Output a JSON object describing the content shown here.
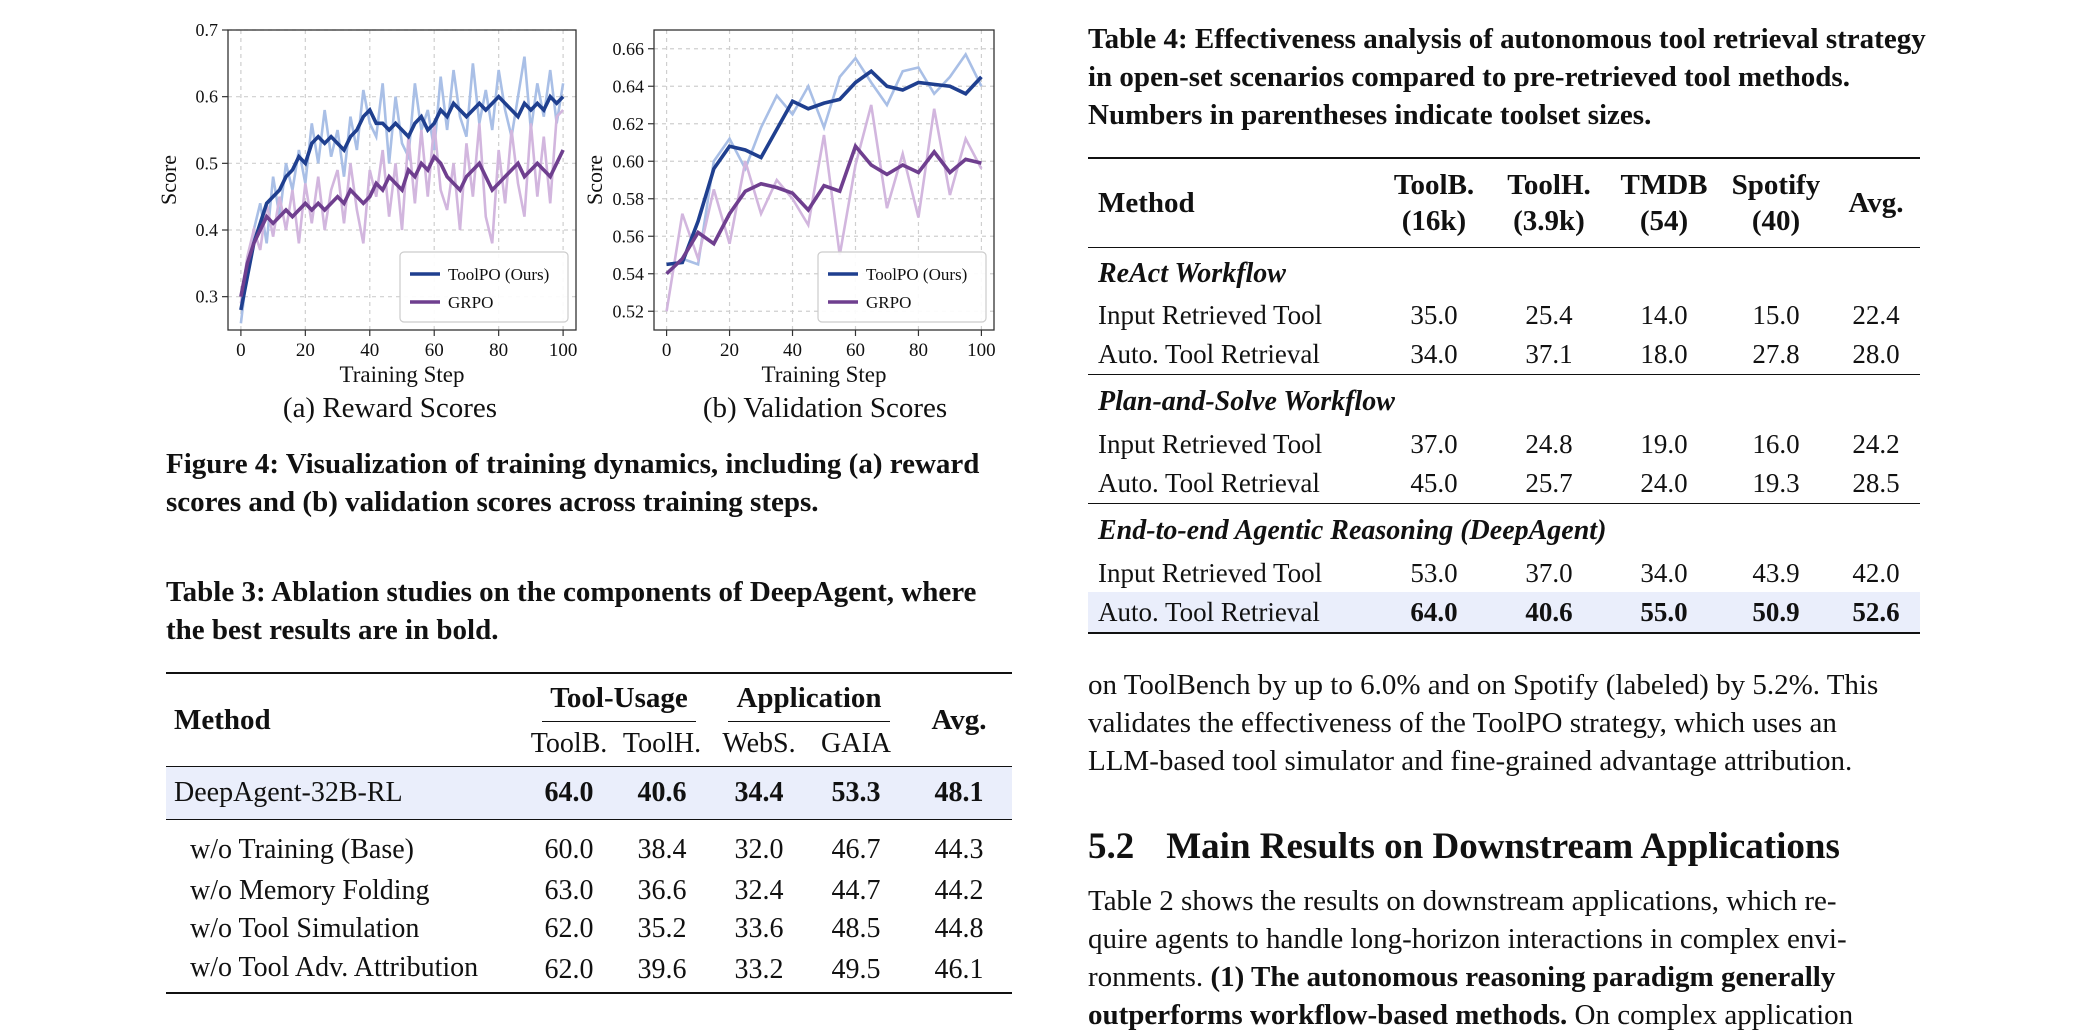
{
  "figure": {
    "subcaption_a": "(a) Reward Scores",
    "subcaption_b": "(b) Validation Scores",
    "caption": "Figure 4: Visualization of training dynamics, including (a) reward scores and (b) validation scores across training steps."
  },
  "chart_data": [
    {
      "type": "line",
      "title": "",
      "xlabel": "Training Step",
      "ylabel": "Score",
      "xlim": [
        -4,
        104
      ],
      "ylim": [
        0.25,
        0.7
      ],
      "xticks": [
        0,
        20,
        40,
        60,
        80,
        100
      ],
      "yticks": [
        0.3,
        0.4,
        0.5,
        0.6,
        0.7
      ],
      "ytick_labels": [
        "0.3",
        "0.4",
        "0.5",
        "0.6",
        "0.7"
      ],
      "grid": true,
      "legend_position": "lower-right",
      "series": [
        {
          "name": "ToolPO (Ours)",
          "color": "#1f3f8f",
          "raw_color": "#a9bfe6",
          "x": [
            0,
            2,
            4,
            6,
            8,
            10,
            12,
            14,
            16,
            18,
            20,
            22,
            24,
            26,
            28,
            30,
            32,
            34,
            36,
            38,
            40,
            42,
            44,
            46,
            48,
            50,
            52,
            54,
            56,
            58,
            60,
            62,
            64,
            66,
            68,
            70,
            72,
            74,
            76,
            78,
            80,
            82,
            84,
            86,
            88,
            90,
            92,
            94,
            96,
            98,
            100
          ],
          "values": [
            0.28,
            0.33,
            0.38,
            0.41,
            0.44,
            0.45,
            0.46,
            0.48,
            0.49,
            0.51,
            0.5,
            0.53,
            0.54,
            0.53,
            0.54,
            0.53,
            0.52,
            0.54,
            0.55,
            0.57,
            0.58,
            0.56,
            0.56,
            0.55,
            0.56,
            0.55,
            0.54,
            0.56,
            0.57,
            0.55,
            0.56,
            0.58,
            0.57,
            0.59,
            0.58,
            0.57,
            0.58,
            0.59,
            0.58,
            0.59,
            0.6,
            0.59,
            0.58,
            0.57,
            0.59,
            0.58,
            0.59,
            0.58,
            0.6,
            0.59,
            0.6
          ],
          "raw_values": [
            0.26,
            0.34,
            0.4,
            0.44,
            0.38,
            0.48,
            0.42,
            0.5,
            0.46,
            0.52,
            0.47,
            0.56,
            0.5,
            0.58,
            0.51,
            0.55,
            0.48,
            0.57,
            0.52,
            0.61,
            0.56,
            0.54,
            0.62,
            0.5,
            0.6,
            0.53,
            0.51,
            0.62,
            0.55,
            0.58,
            0.52,
            0.63,
            0.55,
            0.64,
            0.57,
            0.54,
            0.65,
            0.56,
            0.61,
            0.55,
            0.64,
            0.58,
            0.54,
            0.6,
            0.66,
            0.55,
            0.62,
            0.57,
            0.64,
            0.56,
            0.62
          ]
        },
        {
          "name": "GRPO",
          "color": "#6f3f8f",
          "raw_color": "#d2b6de",
          "x": [
            0,
            2,
            4,
            6,
            8,
            10,
            12,
            14,
            16,
            18,
            20,
            22,
            24,
            26,
            28,
            30,
            32,
            34,
            36,
            38,
            40,
            42,
            44,
            46,
            48,
            50,
            52,
            54,
            56,
            58,
            60,
            62,
            64,
            66,
            68,
            70,
            72,
            74,
            76,
            78,
            80,
            82,
            84,
            86,
            88,
            90,
            92,
            94,
            96,
            98,
            100
          ],
          "values": [
            0.3,
            0.35,
            0.38,
            0.4,
            0.42,
            0.41,
            0.42,
            0.43,
            0.42,
            0.43,
            0.44,
            0.43,
            0.44,
            0.43,
            0.44,
            0.45,
            0.44,
            0.46,
            0.45,
            0.44,
            0.45,
            0.47,
            0.46,
            0.48,
            0.47,
            0.46,
            0.49,
            0.48,
            0.5,
            0.49,
            0.51,
            0.5,
            0.48,
            0.47,
            0.46,
            0.48,
            0.49,
            0.5,
            0.48,
            0.46,
            0.47,
            0.48,
            0.49,
            0.5,
            0.48,
            0.49,
            0.5,
            0.49,
            0.48,
            0.5,
            0.52
          ],
          "raw_values": [
            0.29,
            0.36,
            0.4,
            0.37,
            0.44,
            0.39,
            0.45,
            0.4,
            0.46,
            0.38,
            0.47,
            0.41,
            0.48,
            0.4,
            0.46,
            0.49,
            0.41,
            0.5,
            0.43,
            0.38,
            0.49,
            0.45,
            0.52,
            0.42,
            0.5,
            0.4,
            0.54,
            0.44,
            0.55,
            0.45,
            0.56,
            0.46,
            0.43,
            0.5,
            0.4,
            0.53,
            0.45,
            0.56,
            0.42,
            0.38,
            0.52,
            0.44,
            0.55,
            0.47,
            0.42,
            0.56,
            0.45,
            0.54,
            0.44,
            0.57,
            0.58
          ]
        }
      ]
    },
    {
      "type": "line",
      "title": "",
      "xlabel": "Training Step",
      "ylabel": "Score",
      "xlim": [
        -4,
        104
      ],
      "ylim": [
        0.51,
        0.67
      ],
      "xticks": [
        0,
        20,
        40,
        60,
        80,
        100
      ],
      "yticks": [
        0.52,
        0.54,
        0.56,
        0.58,
        0.6,
        0.62,
        0.64,
        0.66
      ],
      "ytick_labels": [
        "0.52",
        "0.54",
        "0.56",
        "0.58",
        "0.60",
        "0.62",
        "0.64",
        "0.66"
      ],
      "grid": true,
      "legend_position": "lower-right",
      "series": [
        {
          "name": "ToolPO (Ours)",
          "color": "#1f3f8f",
          "raw_color": "#a9bfe6",
          "x": [
            0,
            5,
            10,
            15,
            20,
            25,
            30,
            35,
            40,
            45,
            50,
            55,
            60,
            65,
            70,
            75,
            80,
            85,
            90,
            95,
            100
          ],
          "values": [
            0.545,
            0.546,
            0.568,
            0.596,
            0.608,
            0.606,
            0.602,
            0.617,
            0.632,
            0.628,
            0.631,
            0.633,
            0.642,
            0.648,
            0.64,
            0.638,
            0.642,
            0.641,
            0.64,
            0.636,
            0.645
          ],
          "raw_values": [
            0.54,
            0.548,
            0.545,
            0.6,
            0.612,
            0.596,
            0.618,
            0.635,
            0.625,
            0.64,
            0.618,
            0.645,
            0.655,
            0.642,
            0.63,
            0.648,
            0.65,
            0.636,
            0.645,
            0.657,
            0.64
          ]
        },
        {
          "name": "GRPO",
          "color": "#6f3f8f",
          "raw_color": "#d2b6de",
          "x": [
            0,
            5,
            10,
            15,
            20,
            25,
            30,
            35,
            40,
            45,
            50,
            55,
            60,
            65,
            70,
            75,
            80,
            85,
            90,
            95,
            100
          ],
          "values": [
            0.54,
            0.548,
            0.562,
            0.556,
            0.572,
            0.584,
            0.588,
            0.586,
            0.583,
            0.574,
            0.587,
            0.584,
            0.608,
            0.598,
            0.593,
            0.598,
            0.594,
            0.605,
            0.594,
            0.601,
            0.599
          ],
          "raw_values": [
            0.52,
            0.572,
            0.548,
            0.585,
            0.556,
            0.6,
            0.572,
            0.59,
            0.58,
            0.566,
            0.614,
            0.55,
            0.598,
            0.63,
            0.575,
            0.604,
            0.57,
            0.628,
            0.582,
            0.612,
            0.596
          ]
        }
      ]
    }
  ],
  "table3": {
    "caption": "Table 3: Ablation studies on the components of DeepAgent, where the best results are in bold.",
    "header": {
      "method": "Method",
      "group1": "Tool-Usage",
      "group2": "Application",
      "avg": "Avg.",
      "cols": [
        "ToolB.",
        "ToolH.",
        "WebS.",
        "GAIA"
      ]
    },
    "main_row": {
      "name": "DeepAgent-32B-RL",
      "values": [
        "64.0",
        "40.6",
        "34.4",
        "53.3",
        "48.1"
      ]
    },
    "rows": [
      {
        "name": "w/o Training (Base)",
        "values": [
          "60.0",
          "38.4",
          "32.0",
          "46.7",
          "44.3"
        ]
      },
      {
        "name": "w/o Memory Folding",
        "values": [
          "63.0",
          "36.6",
          "32.4",
          "44.7",
          "44.2"
        ]
      },
      {
        "name": "w/o Tool Simulation",
        "values": [
          "62.0",
          "35.2",
          "33.6",
          "48.5",
          "44.8"
        ]
      },
      {
        "name": "w/o Tool Adv. Attribution",
        "values": [
          "62.0",
          "39.6",
          "33.2",
          "49.5",
          "46.1"
        ]
      }
    ]
  },
  "table4": {
    "caption": "Table 4: Effectiveness analysis of autonomous tool retrieval strategy in open-set scenarios compared to pre-retrieved tool methods. Numbers in parentheses indicate toolset sizes.",
    "header": {
      "method": "Method",
      "cols": [
        [
          "ToolB.",
          "(16k)"
        ],
        [
          "ToolH.",
          "(3.9k)"
        ],
        [
          "TMDB",
          "(54)"
        ],
        [
          "Spotify",
          "(40)"
        ]
      ],
      "avg": "Avg."
    },
    "sections": [
      {
        "title": "ReAct Workflow",
        "rows": [
          {
            "name": "Input Retrieved Tool",
            "values": [
              "35.0",
              "25.4",
              "14.0",
              "15.0",
              "22.4"
            ]
          },
          {
            "name": "Auto. Tool Retrieval",
            "values": [
              "34.0",
              "37.1",
              "18.0",
              "27.8",
              "28.0"
            ]
          }
        ]
      },
      {
        "title": "Plan-and-Solve Workflow",
        "rows": [
          {
            "name": "Input Retrieved Tool",
            "values": [
              "37.0",
              "24.8",
              "19.0",
              "16.0",
              "24.2"
            ]
          },
          {
            "name": "Auto. Tool Retrieval",
            "values": [
              "45.0",
              "25.7",
              "24.0",
              "19.3",
              "28.5"
            ]
          }
        ]
      },
      {
        "title": "End-to-end Agentic Reasoning (DeepAgent)",
        "rows": [
          {
            "name": "Input Retrieved Tool",
            "values": [
              "53.0",
              "37.0",
              "34.0",
              "43.9",
              "42.0"
            ]
          },
          {
            "name": "Auto. Tool Retrieval",
            "values": [
              "64.0",
              "40.6",
              "55.0",
              "50.9",
              "52.6"
            ]
          }
        ]
      }
    ]
  },
  "right_text": {
    "para1": [
      "on ToolBench by up to 6.0% and on Spotify (labeled) by 5.2%. This",
      "validates the effectiveness of the ToolPO strategy, which uses an",
      "LLM-based tool simulator and fine-grained advantage attribution."
    ],
    "section_number": "5.2",
    "section_title": "Main Results on Downstream Applications",
    "para2_line1": "Table 2 shows the results on downstream applications, which re-",
    "para2_line2": "quire agents to handle long-horizon interactions in complex envi-",
    "para2_line3_plain": "ronments. ",
    "para2_line3_bold": "(1) The autonomous reasoning paradigm generally",
    "para2_line4_bold": "outperforms workflow-based methods.",
    "para2_line4_plain": " On complex application"
  }
}
